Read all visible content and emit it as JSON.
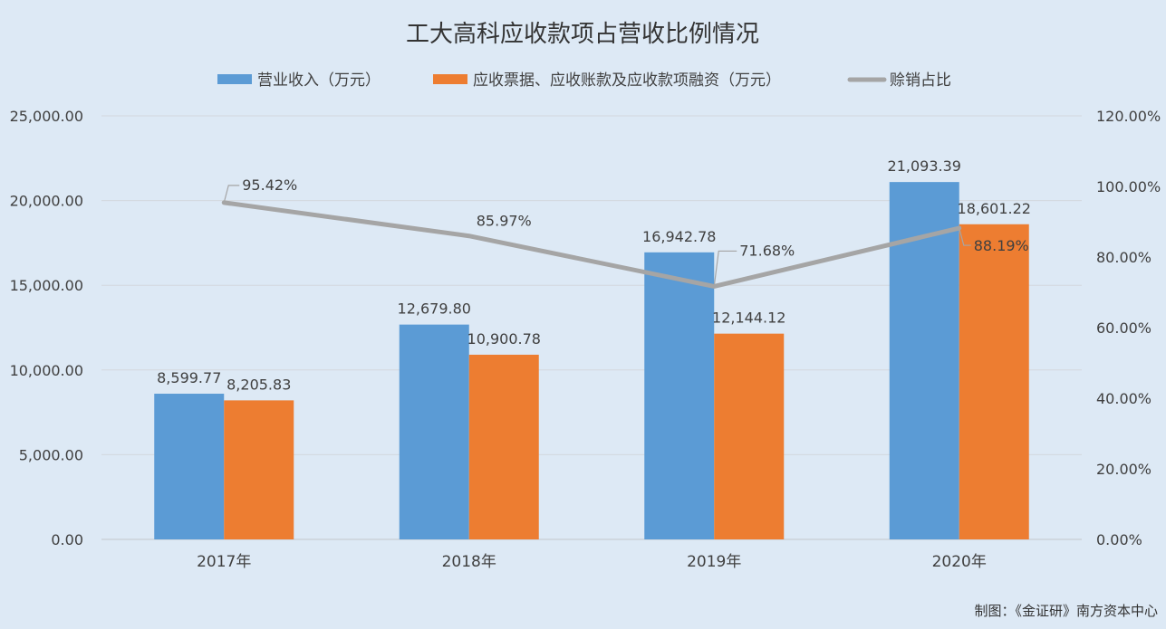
{
  "chart_data": {
    "type": "bar",
    "title": "工大高科应收款项占营收比例情况",
    "categories": [
      "2017年",
      "2018年",
      "2019年",
      "2020年"
    ],
    "series": [
      {
        "name": "营业收入（万元）",
        "kind": "bar",
        "axis": "left",
        "color": "#5b9bd5",
        "values": [
          8599.77,
          12679.8,
          16942.78,
          21093.39
        ],
        "labels": [
          "8,599.77",
          "12,679.80",
          "16,942.78",
          "21,093.39"
        ]
      },
      {
        "name": "应收票据、应收账款及应收款项融资（万元）",
        "kind": "bar",
        "axis": "left",
        "color": "#ed7d31",
        "values": [
          8205.83,
          10900.78,
          12144.12,
          18601.22
        ],
        "labels": [
          "8,205.83",
          "10,900.78",
          "12,144.12",
          "18,601.22"
        ]
      },
      {
        "name": "赊销占比",
        "kind": "line",
        "axis": "right",
        "color": "#a5a5a5",
        "values": [
          95.42,
          85.97,
          71.68,
          88.19
        ],
        "labels": [
          "95.42%",
          "85.97%",
          "71.68%",
          "88.19%"
        ]
      }
    ],
    "ylim_left": [
      0,
      25000
    ],
    "ylim_right": [
      0,
      120
    ],
    "left_ticks": [
      "0.00",
      "5,000.00",
      "10,000.00",
      "15,000.00",
      "20,000.00",
      "25,000.00"
    ],
    "right_ticks": [
      "0.00%",
      "20.00%",
      "40.00%",
      "60.00%",
      "80.00%",
      "100.00%",
      "120.00%"
    ],
    "grid": true,
    "legend_position": "top"
  },
  "credit": "制图：《金证研》南方资本中心"
}
